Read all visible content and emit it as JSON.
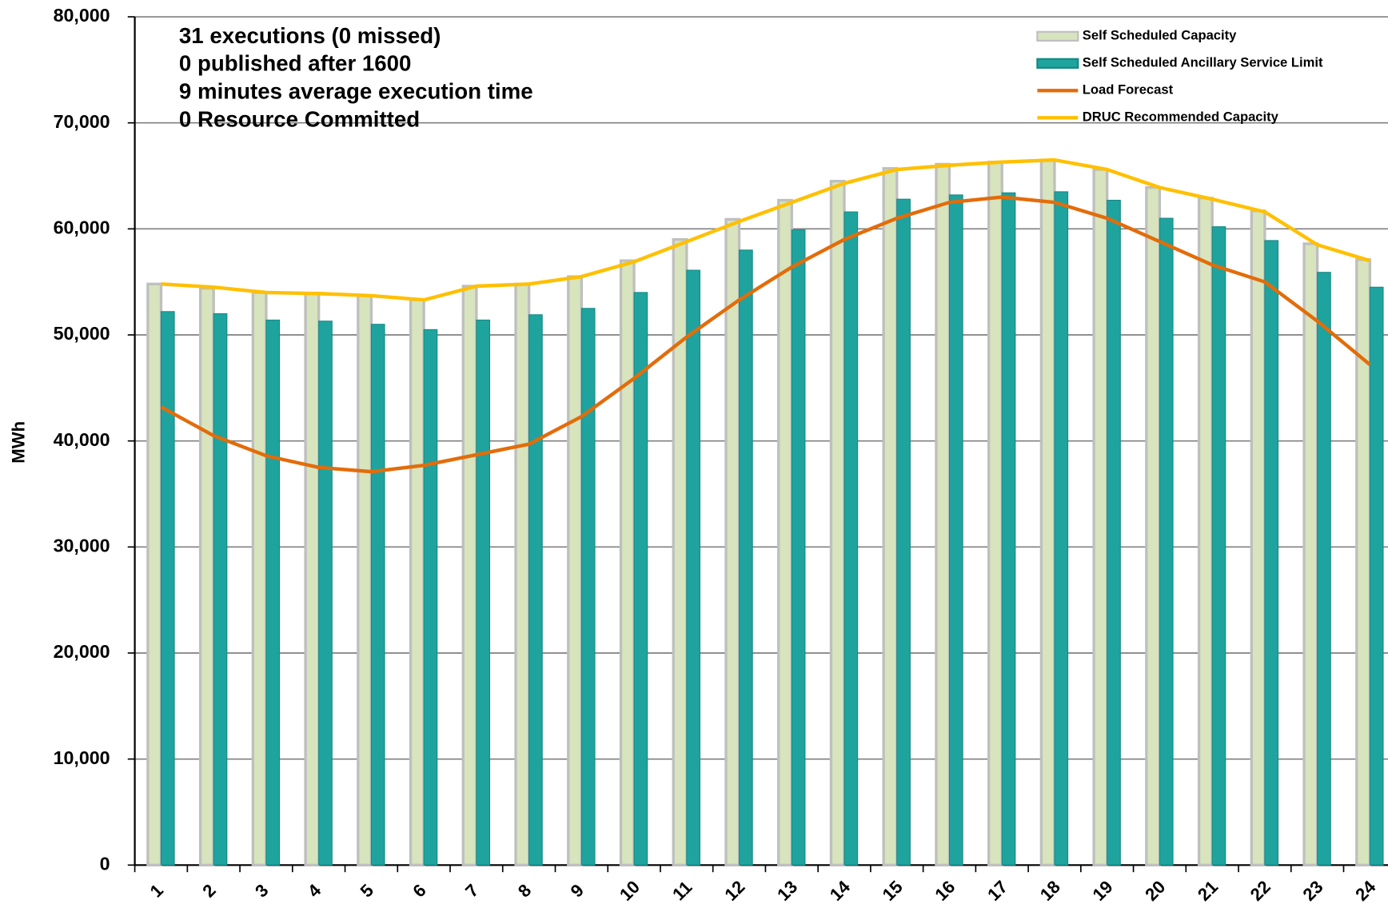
{
  "chart_data": {
    "type": "bar_line",
    "y_label": "MWh",
    "annotations": [
      "31 executions (0 missed)",
      "0 published after 1600",
      "9 minutes average execution time",
      "0 Resource Committed"
    ],
    "categories": [
      "1",
      "2",
      "3",
      "4",
      "5",
      "6",
      "7",
      "8",
      "9",
      "10",
      "11",
      "12",
      "13",
      "14",
      "15",
      "16",
      "17",
      "18",
      "19",
      "20",
      "21",
      "22",
      "23",
      "24"
    ],
    "series": [
      {
        "name": "Self Scheduled Capacity",
        "kind": "bar",
        "color": "#d7e4bd",
        "values": [
          54800,
          54400,
          54000,
          53900,
          53700,
          53300,
          54600,
          54800,
          55500,
          57000,
          59000,
          60900,
          62700,
          64500,
          65700,
          66100,
          66300,
          66500,
          65600,
          63900,
          62900,
          61700,
          58600,
          57100
        ]
      },
      {
        "name": "Self Scheduled Ancillary Service Limit",
        "kind": "bar",
        "color": "#1fa39e",
        "values": [
          52200,
          52000,
          51400,
          51300,
          51000,
          50500,
          51400,
          51900,
          52500,
          54000,
          56100,
          58000,
          59900,
          61600,
          62800,
          63200,
          63400,
          63500,
          62700,
          61000,
          60200,
          58900,
          55900,
          54500
        ]
      },
      {
        "name": "Load Forecast",
        "kind": "line",
        "color": "#e36c0a",
        "values": [
          43200,
          40500,
          38600,
          37500,
          37100,
          37700,
          38700,
          39700,
          42300,
          45900,
          49800,
          53300,
          56400,
          59000,
          61000,
          62500,
          63000,
          62500,
          61000,
          58800,
          56600,
          55000,
          51300,
          47200
        ]
      },
      {
        "name": "DRUC Recommended Capacity",
        "kind": "line",
        "color": "#ffc000",
        "values": [
          54800,
          54500,
          54000,
          53900,
          53700,
          53300,
          54600,
          54800,
          55500,
          56900,
          58800,
          60700,
          62500,
          64300,
          65600,
          66000,
          66300,
          66500,
          65600,
          63900,
          62800,
          61600,
          58500,
          57000
        ]
      }
    ],
    "ylim": [
      0,
      80000
    ],
    "yticks": [
      0,
      {
        "value": 10000,
        "label": "10,000"
      },
      {
        "value": 20000,
        "label": "20,000"
      },
      {
        "value": 30000,
        "label": "30,000"
      },
      {
        "value": 40000,
        "label": "40,000"
      },
      {
        "value": 50000,
        "label": "50,000"
      },
      {
        "value": 60000,
        "label": "60,000"
      },
      {
        "value": 70000,
        "label": "70,000"
      },
      {
        "value": 80000,
        "label": "80,000"
      }
    ],
    "grid": true,
    "legend": "top-right"
  }
}
